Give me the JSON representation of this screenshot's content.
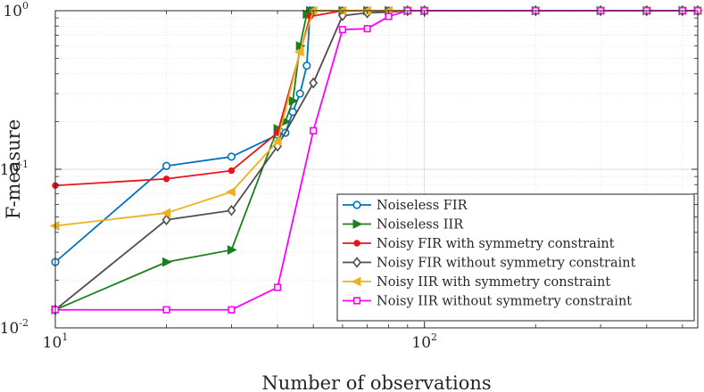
{
  "chart_data": {
    "type": "line",
    "xscale": "log",
    "yscale": "log",
    "title": "",
    "xlabel": "Number of observations",
    "ylabel": "F-measure",
    "xlim": [
      10,
      550
    ],
    "ylim": [
      0.01,
      1
    ],
    "grid": true,
    "legend_position": "bottom-right",
    "x_ticks": [
      {
        "value": 10,
        "base": "10",
        "exp": "1"
      },
      {
        "value": 100,
        "base": "10",
        "exp": "2"
      }
    ],
    "y_ticks": [
      {
        "value": 0.01,
        "base": "10",
        "exp": "-2"
      },
      {
        "value": 0.1,
        "base": "10",
        "exp": "-1"
      },
      {
        "value": 1,
        "base": "10",
        "exp": "0"
      }
    ],
    "series": [
      {
        "name": "Noiseless FIR",
        "color": "#0072bd",
        "marker": "circle",
        "x": [
          10,
          20,
          30,
          40,
          42,
          44,
          46,
          48,
          49,
          50,
          60,
          70,
          80,
          90,
          100,
          200,
          300,
          400,
          500,
          550
        ],
        "y": [
          0.026,
          0.105,
          0.12,
          0.165,
          0.17,
          0.23,
          0.3,
          0.45,
          1.0,
          1.0,
          1.0,
          1.0,
          1.0,
          1.0,
          1.0,
          1.0,
          1.0,
          1.0,
          1.0,
          1.0
        ]
      },
      {
        "name": "Noiseless IIR",
        "color": "#1b7f1b",
        "marker": "triangle-right",
        "x": [
          10,
          20,
          30,
          40,
          42,
          44,
          46,
          48,
          49,
          50,
          60,
          70,
          80,
          90,
          100,
          200,
          300,
          400,
          500,
          550
        ],
        "y": [
          0.013,
          0.026,
          0.031,
          0.18,
          0.2,
          0.27,
          0.6,
          0.95,
          1.0,
          1.0,
          1.0,
          1.0,
          1.0,
          1.0,
          1.0,
          1.0,
          1.0,
          1.0,
          1.0,
          1.0
        ]
      },
      {
        "name": "Noisy FIR with symmetry constraint",
        "color": "#e8141a",
        "marker": "dot",
        "x": [
          10,
          20,
          30,
          40,
          49,
          60,
          70,
          80,
          90,
          100,
          200,
          300,
          400,
          500,
          550
        ],
        "y": [
          0.079,
          0.087,
          0.098,
          0.17,
          0.92,
          1.0,
          1.0,
          1.0,
          1.0,
          1.0,
          1.0,
          1.0,
          1.0,
          1.0,
          1.0
        ]
      },
      {
        "name": "Noisy FIR without symmetry constraint",
        "color": "#4d4d4d",
        "marker": "diamond",
        "x": [
          10,
          20,
          30,
          40,
          50,
          60,
          70,
          80,
          90,
          100,
          200,
          300,
          400,
          500,
          550
        ],
        "y": [
          0.013,
          0.048,
          0.055,
          0.14,
          0.35,
          0.93,
          0.97,
          0.98,
          1.0,
          1.0,
          1.0,
          1.0,
          1.0,
          1.0,
          1.0
        ]
      },
      {
        "name": "Noisy IIR with symmetry constraint",
        "color": "#edb120",
        "marker": "triangle-left",
        "x": [
          10,
          20,
          30,
          40,
          46,
          50,
          60,
          70,
          80,
          90,
          100,
          200,
          300,
          400,
          500,
          550
        ],
        "y": [
          0.044,
          0.053,
          0.072,
          0.15,
          0.55,
          1.0,
          1.0,
          1.0,
          1.0,
          1.0,
          1.0,
          1.0,
          1.0,
          1.0,
          1.0,
          1.0
        ]
      },
      {
        "name": "Noisy IIR without symmetry constraint",
        "color": "#ff00ff",
        "marker": "square",
        "x": [
          10,
          20,
          30,
          40,
          50,
          60,
          70,
          80,
          90,
          100,
          200,
          300,
          400,
          500,
          550
        ],
        "y": [
          0.013,
          0.013,
          0.013,
          0.018,
          0.175,
          0.76,
          0.77,
          0.92,
          1.0,
          1.0,
          1.0,
          1.0,
          1.0,
          1.0,
          1.0
        ]
      }
    ]
  }
}
